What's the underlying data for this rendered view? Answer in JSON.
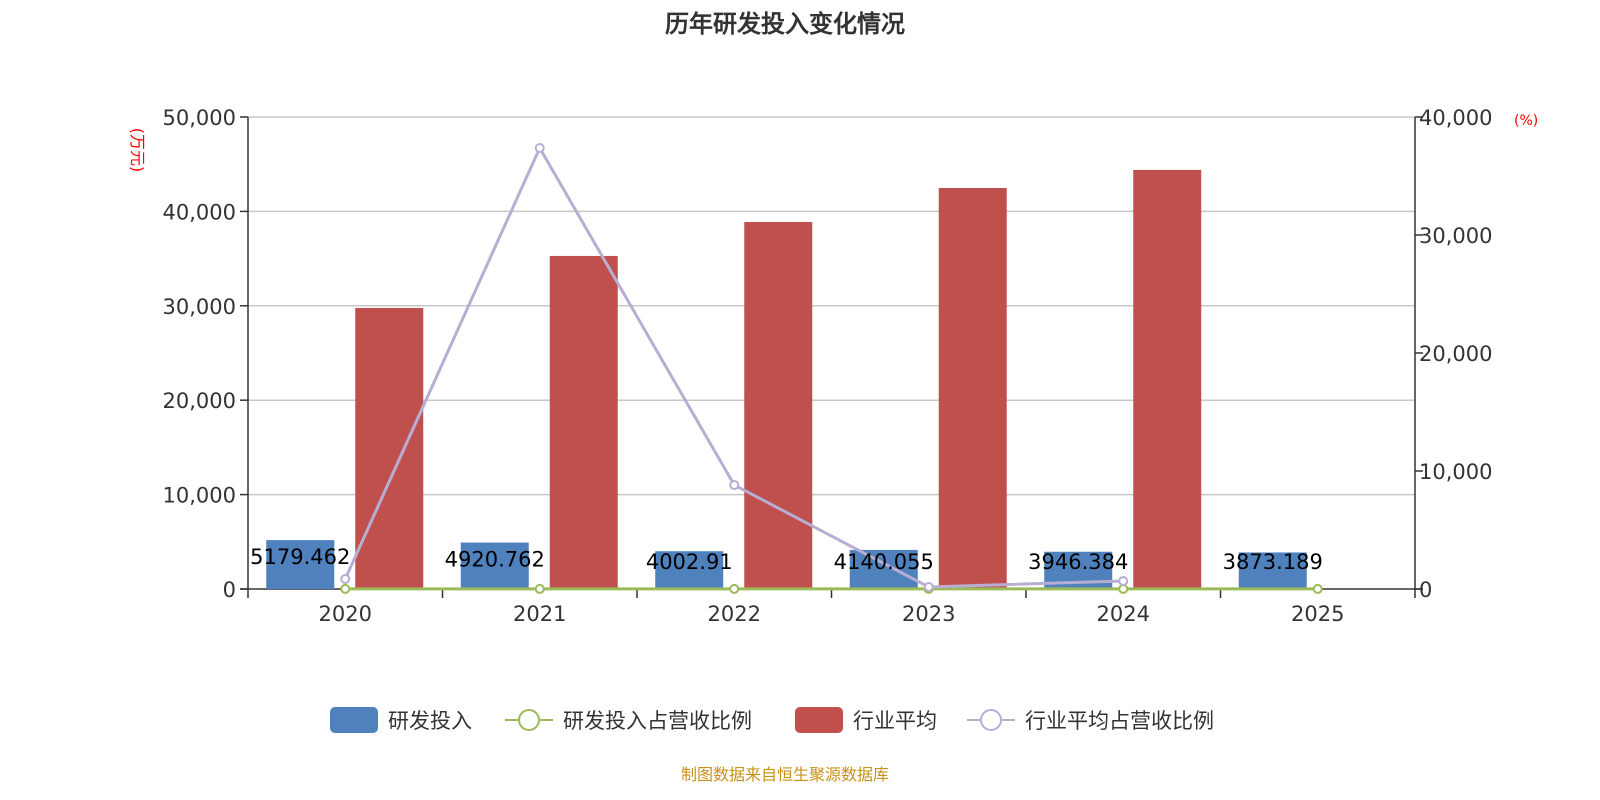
{
  "chart_data": {
    "type": "bar",
    "title": "历年研发投入变化情况",
    "categories": [
      "2020",
      "2021",
      "2022",
      "2023",
      "2024",
      "2025"
    ],
    "y_left": {
      "label": "(万元)",
      "range": [
        0,
        50000
      ],
      "ticks": [
        "0",
        "10,000",
        "20,000",
        "30,000",
        "40,000",
        "50,000"
      ]
    },
    "y_right": {
      "label": "(%)",
      "range": [
        0,
        40000
      ],
      "ticks": [
        "0",
        "10,000",
        "20,000",
        "30,000",
        "40,000"
      ]
    },
    "grid": true,
    "legend_position": "bottom",
    "series": [
      {
        "name": "研发投入",
        "type": "bar",
        "axis": "left",
        "color": "#4f81bd",
        "values": [
          5179.462,
          4920.762,
          4002.91,
          4140.055,
          3946.384,
          3873.189
        ],
        "labels": [
          "5179.462",
          "4920.762",
          "4002.91",
          "4140.055",
          "3946.384",
          "3873.189"
        ]
      },
      {
        "name": "研发投入占营收比例",
        "type": "line",
        "axis": "right",
        "color": "#9bbb59",
        "values": [
          8,
          8,
          8,
          8,
          8,
          8
        ]
      },
      {
        "name": "行业平均",
        "type": "bar",
        "axis": "left",
        "color": "#c0504d",
        "values": [
          29770,
          35280,
          38880,
          42480,
          44390,
          null
        ]
      },
      {
        "name": "行业平均占营收比例",
        "type": "line",
        "axis": "right",
        "color": "#b7aed3",
        "values": [
          850,
          37370,
          8810,
          170,
          680,
          null
        ]
      }
    ]
  },
  "footer": "制图数据来自恒生聚源数据库"
}
